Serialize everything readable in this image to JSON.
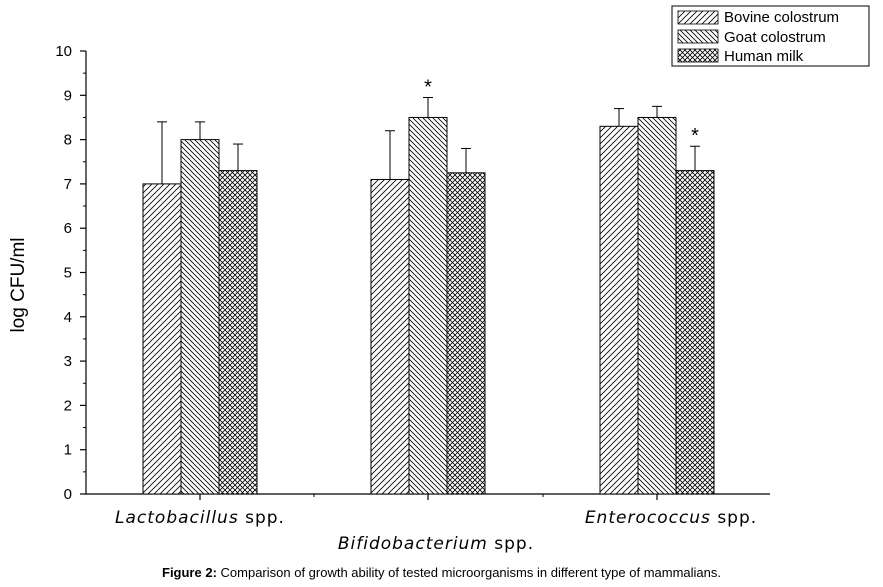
{
  "chart_data": {
    "type": "bar",
    "ylabel": "log CFU/ml",
    "ylim": [
      0,
      10
    ],
    "yticks": [
      "0",
      "1",
      "2",
      "3",
      "4",
      "5",
      "6",
      "7",
      "8",
      "9",
      "10"
    ],
    "categories": [
      {
        "italic": "Lactobacillus",
        "suffix": " spp."
      },
      {
        "italic": "Bifidobacterium",
        "suffix": " spp."
      },
      {
        "italic": "Enterococcus",
        "suffix": " spp."
      }
    ],
    "series": [
      {
        "name": "Bovine colostrum",
        "pattern": "hatch-forward",
        "values": [
          7.0,
          7.1,
          8.3
        ],
        "errors": [
          1.4,
          1.1,
          0.4
        ]
      },
      {
        "name": "Goat colostrum",
        "pattern": "hatch-back",
        "values": [
          8.0,
          8.5,
          8.5
        ],
        "errors": [
          0.4,
          0.45,
          0.25
        ]
      },
      {
        "name": "Human milk",
        "pattern": "crosshatch",
        "values": [
          7.3,
          7.25,
          7.3
        ],
        "errors": [
          0.6,
          0.55,
          0.55
        ]
      }
    ],
    "annotations": [
      {
        "text": "*",
        "category": 1,
        "series": 1
      },
      {
        "text": "*",
        "category": 2,
        "series": 2
      }
    ],
    "legend_position": "top-right",
    "grid": false
  },
  "caption": {
    "label": "Figure 2:",
    "text": " Comparison of growth ability of tested microorganisms in different type of mammalians."
  }
}
